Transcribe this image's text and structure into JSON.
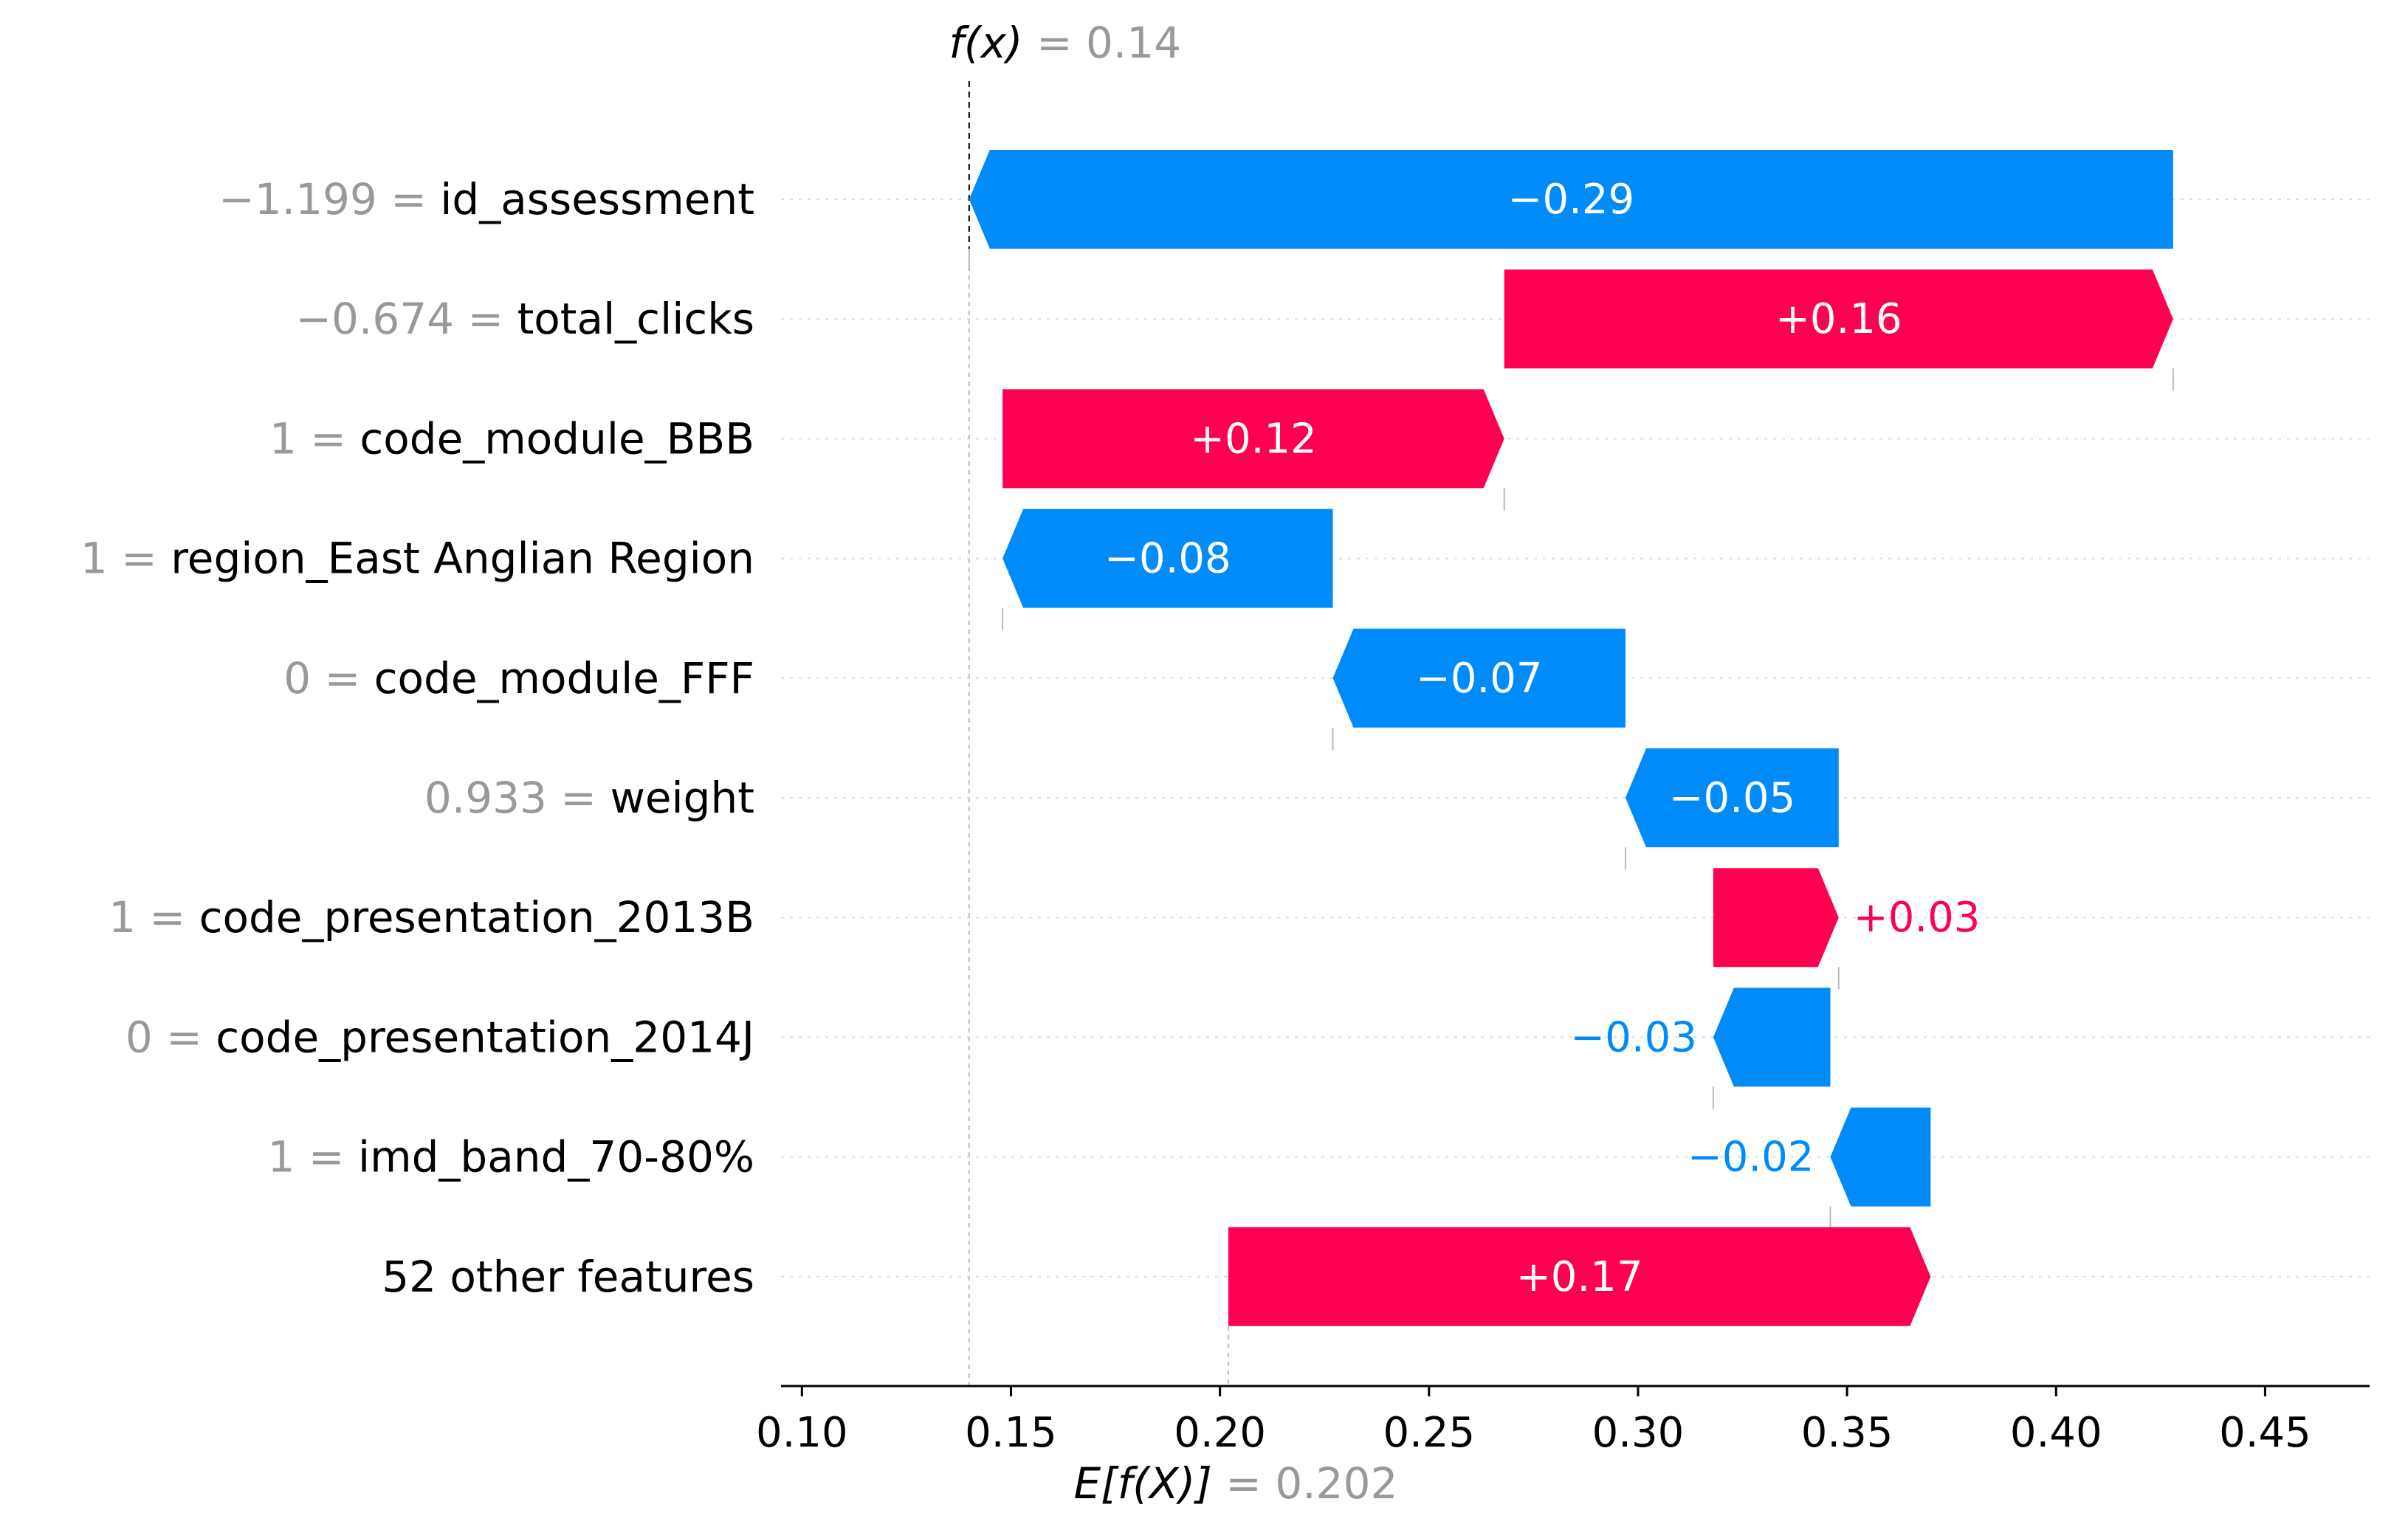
{
  "chart_data": {
    "type": "waterfall",
    "title": "",
    "fx_label": "f(x)",
    "fx_value": "0.14",
    "base_label": "E[f(X)]",
    "base_value": "0.202",
    "fx": 0.14,
    "base": 0.202,
    "xlim": [
      0.095,
      0.475
    ],
    "xticks": [
      0.1,
      0.15,
      0.2,
      0.25,
      0.3,
      0.35,
      0.4,
      0.45
    ],
    "xtick_labels": [
      "0.10",
      "0.15",
      "0.20",
      "0.25",
      "0.30",
      "0.35",
      "0.40",
      "0.45"
    ],
    "features": [
      {
        "value": "−1.199",
        "name": "id_assessment",
        "start": 0.428,
        "end": 0.14,
        "label": "−0.29",
        "sign": "neg",
        "label_inside": true
      },
      {
        "value": "−0.674",
        "name": "total_clicks",
        "start": 0.268,
        "end": 0.428,
        "label": "+0.16",
        "sign": "pos",
        "label_inside": true
      },
      {
        "value": "1",
        "name": "code_module_BBB",
        "start": 0.148,
        "end": 0.268,
        "label": "+0.12",
        "sign": "pos",
        "label_inside": true
      },
      {
        "value": "1",
        "name": "region_East Anglian Region",
        "start": 0.227,
        "end": 0.148,
        "label": "−0.08",
        "sign": "neg",
        "label_inside": true
      },
      {
        "value": "0",
        "name": "code_module_FFF",
        "start": 0.297,
        "end": 0.227,
        "label": "−0.07",
        "sign": "neg",
        "label_inside": true
      },
      {
        "value": "0.933",
        "name": "weight",
        "start": 0.348,
        "end": 0.297,
        "label": "−0.05",
        "sign": "neg",
        "label_inside": true
      },
      {
        "value": "1",
        "name": "code_presentation_2013B",
        "start": 0.318,
        "end": 0.348,
        "label": "+0.03",
        "sign": "pos",
        "label_inside": false
      },
      {
        "value": "0",
        "name": "code_presentation_2014J",
        "start": 0.346,
        "end": 0.318,
        "label": "−0.03",
        "sign": "neg",
        "label_inside": false
      },
      {
        "value": "1",
        "name": "imd_band_70-80%",
        "start": 0.37,
        "end": 0.346,
        "label": "−0.02",
        "sign": "neg",
        "label_inside": false
      },
      {
        "value": "",
        "name": "52 other features",
        "start": 0.202,
        "end": 0.37,
        "label": "+0.17",
        "sign": "pos",
        "label_inside": true
      }
    ],
    "colors": {
      "positive": "#ff0051",
      "negative": "#008bfb",
      "muted": "#999999",
      "axis": "#000000",
      "grid": "#dddddd"
    }
  }
}
